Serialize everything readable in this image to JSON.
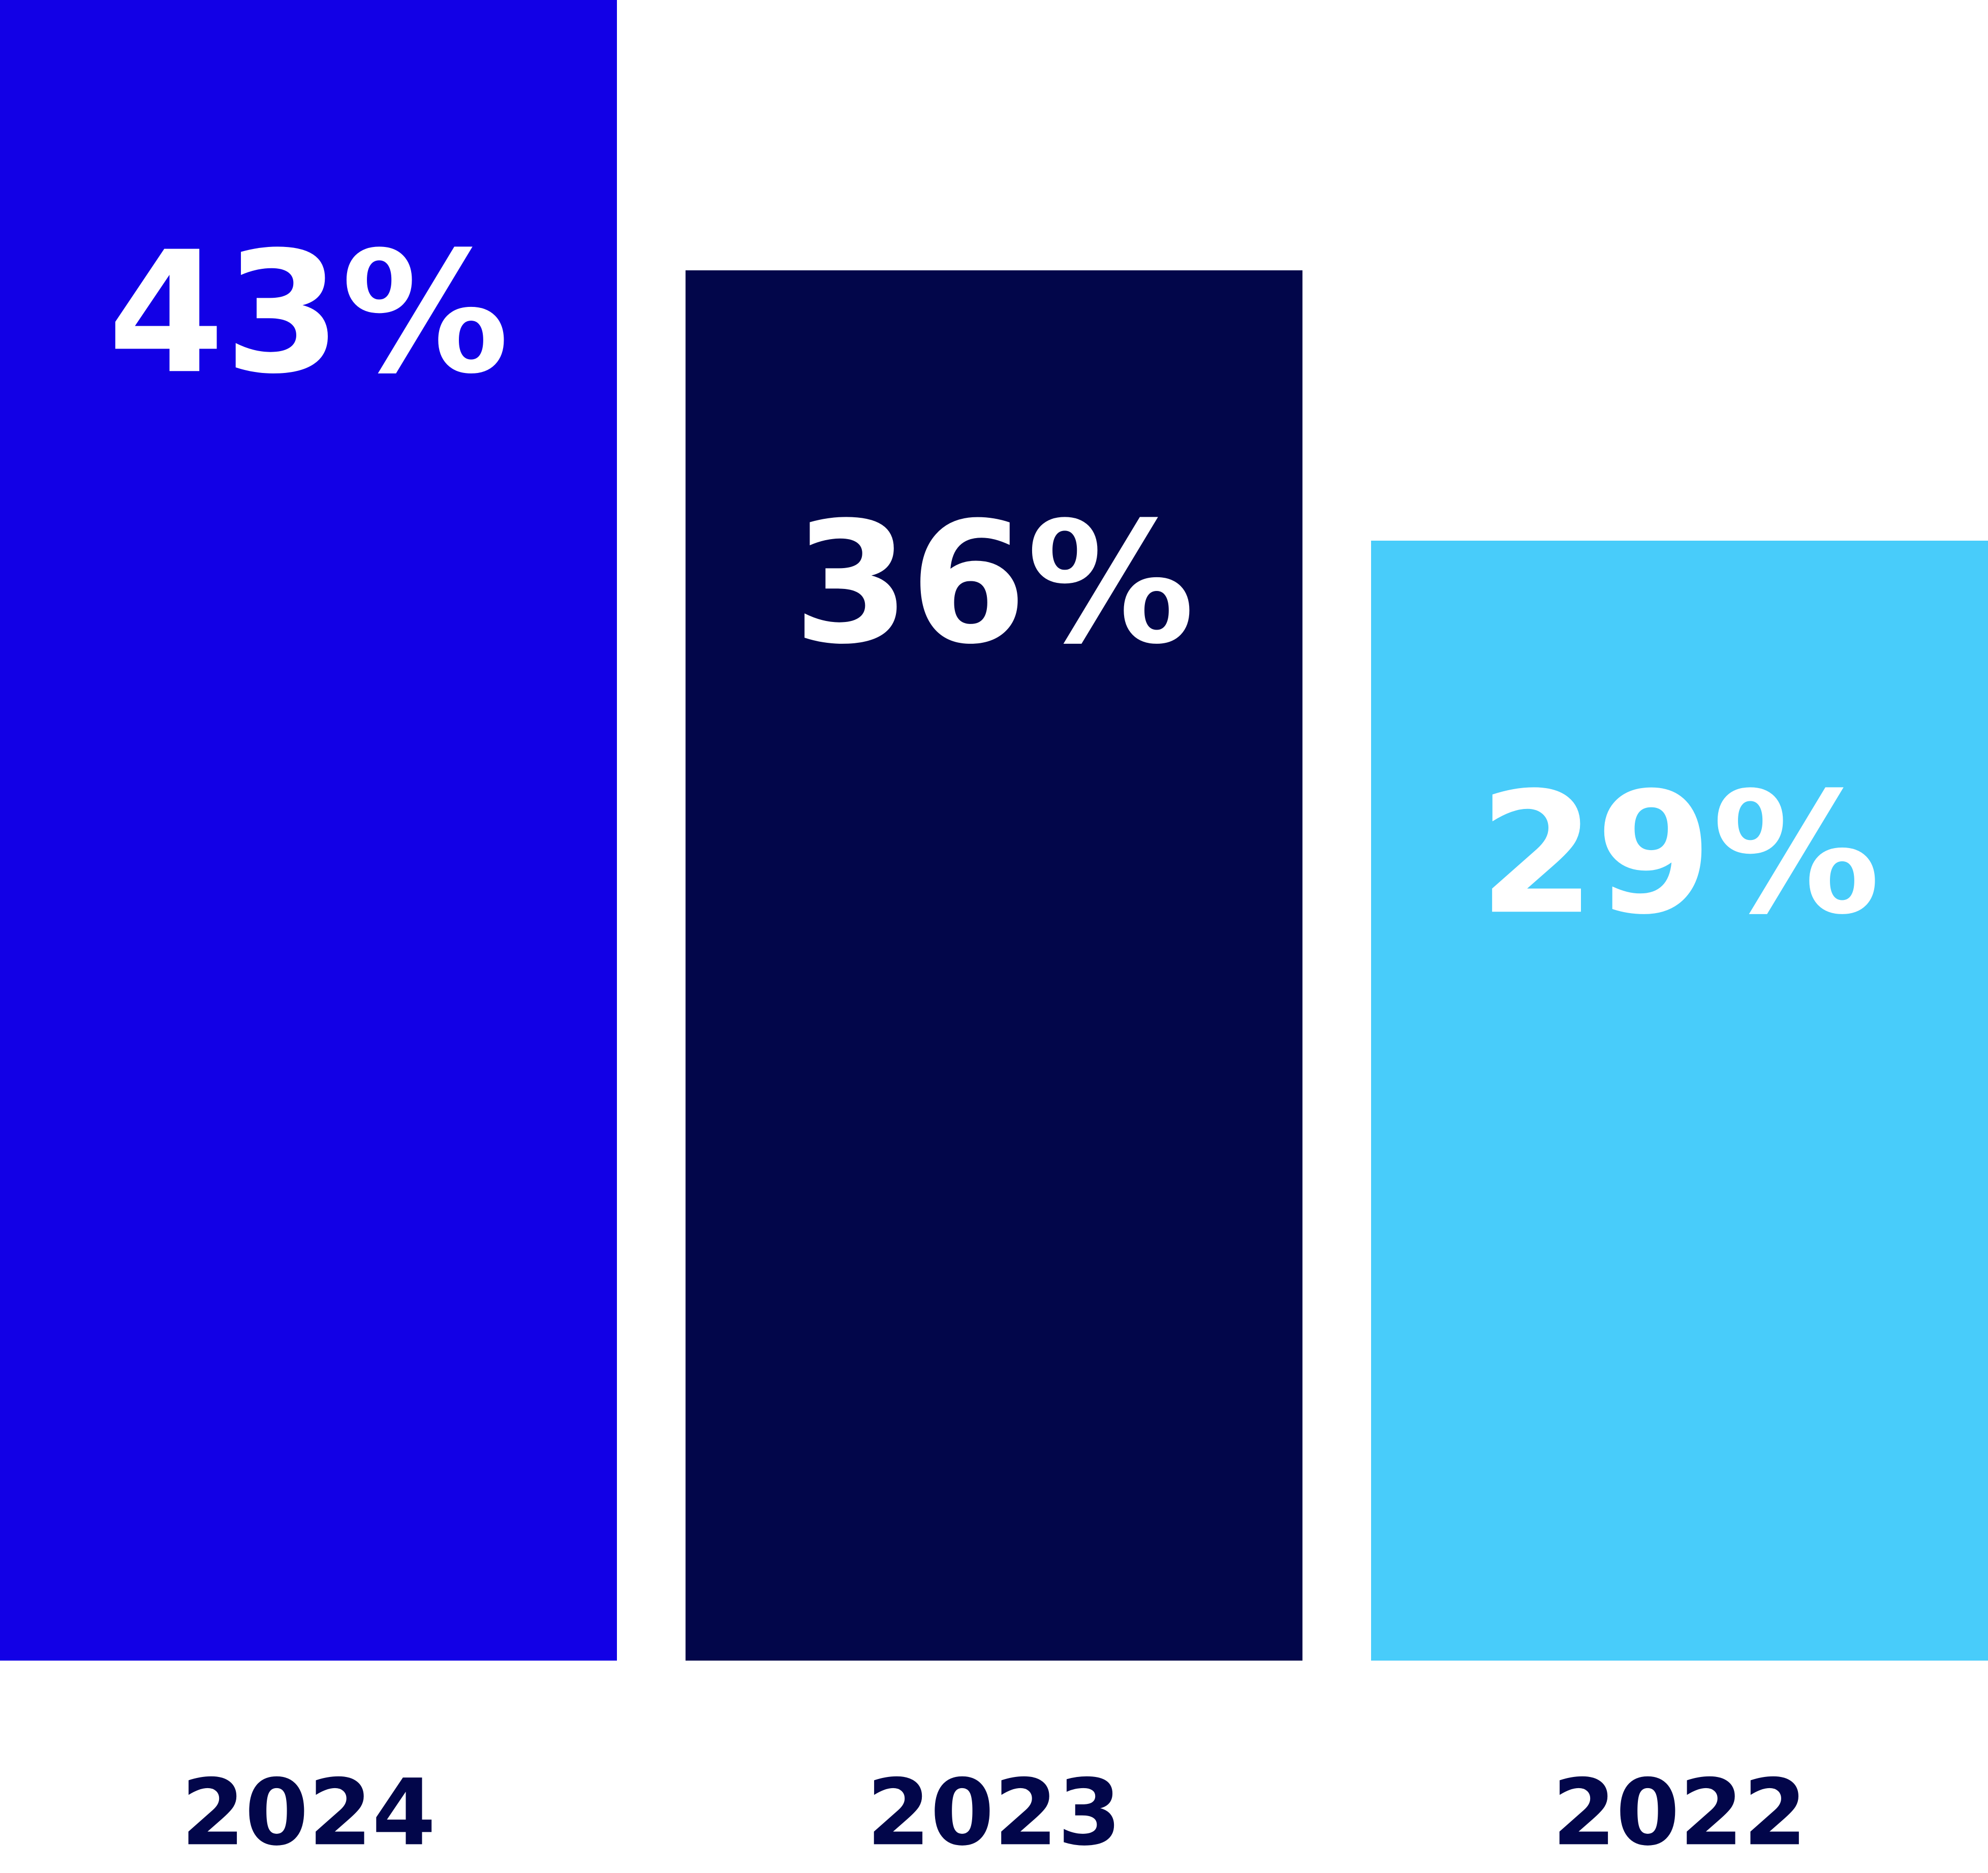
{
  "chart_data": {
    "type": "bar",
    "categories": [
      "2024",
      "2023",
      "2022"
    ],
    "values": [
      43,
      36,
      29
    ],
    "value_labels": [
      "43%",
      "36%",
      "29%"
    ],
    "colors": [
      "#1200e6",
      "#02064a",
      "#48ccfa"
    ]
  }
}
